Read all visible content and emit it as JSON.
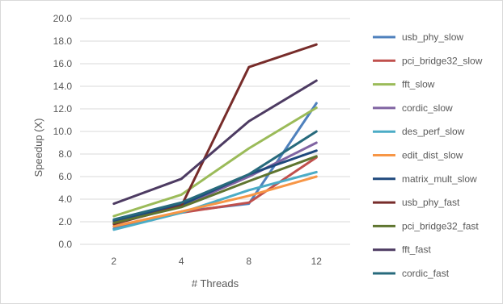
{
  "chart_data": {
    "type": "line",
    "title": "",
    "xlabel": "# Threads",
    "ylabel": "Speedup (X)",
    "categories": [
      "2",
      "4",
      "8",
      "12"
    ],
    "ylim": [
      0,
      20
    ],
    "yticks": [
      "0.0",
      "2.0",
      "4.0",
      "6.0",
      "8.0",
      "10.0",
      "12.0",
      "14.0",
      "16.0",
      "18.0",
      "20.0"
    ],
    "grid": "horizontal",
    "legend_position": "right",
    "series": [
      {
        "name": "usb_phy_slow",
        "color": "#4f81bd",
        "values": [
          1.4,
          2.9,
          3.6,
          12.5
        ]
      },
      {
        "name": "pci_bridge32_slow",
        "color": "#c0504d",
        "values": [
          1.6,
          2.8,
          3.7,
          7.7
        ]
      },
      {
        "name": "fft_slow",
        "color": "#9bbb59",
        "values": [
          2.5,
          4.4,
          8.5,
          12.1
        ]
      },
      {
        "name": "cordic_slow",
        "color": "#8064a2",
        "values": [
          2.0,
          3.4,
          6.0,
          9.0
        ]
      },
      {
        "name": "des_perf_slow",
        "color": "#4bacc6",
        "values": [
          1.3,
          2.8,
          4.8,
          6.4
        ]
      },
      {
        "name": "edit_dist_slow",
        "color": "#f79646",
        "values": [
          1.6,
          2.9,
          4.3,
          6.0
        ]
      },
      {
        "name": "matrix_mult_slow",
        "color": "#1f497d",
        "values": [
          2.1,
          3.5,
          6.2,
          8.3
        ]
      },
      {
        "name": "usb_phy_fast",
        "color": "#772c2a",
        "values": [
          1.8,
          3.4,
          15.7,
          17.7
        ]
      },
      {
        "name": "pci_bridge32_fast",
        "color": "#5f7530",
        "values": [
          1.9,
          3.3,
          5.6,
          7.8
        ]
      },
      {
        "name": "fft_fast",
        "color": "#4d3b62",
        "values": [
          3.6,
          5.8,
          10.9,
          14.5
        ]
      },
      {
        "name": "cordic_fast",
        "color": "#276a7c",
        "values": [
          2.2,
          3.7,
          6.2,
          10.0
        ]
      }
    ]
  }
}
